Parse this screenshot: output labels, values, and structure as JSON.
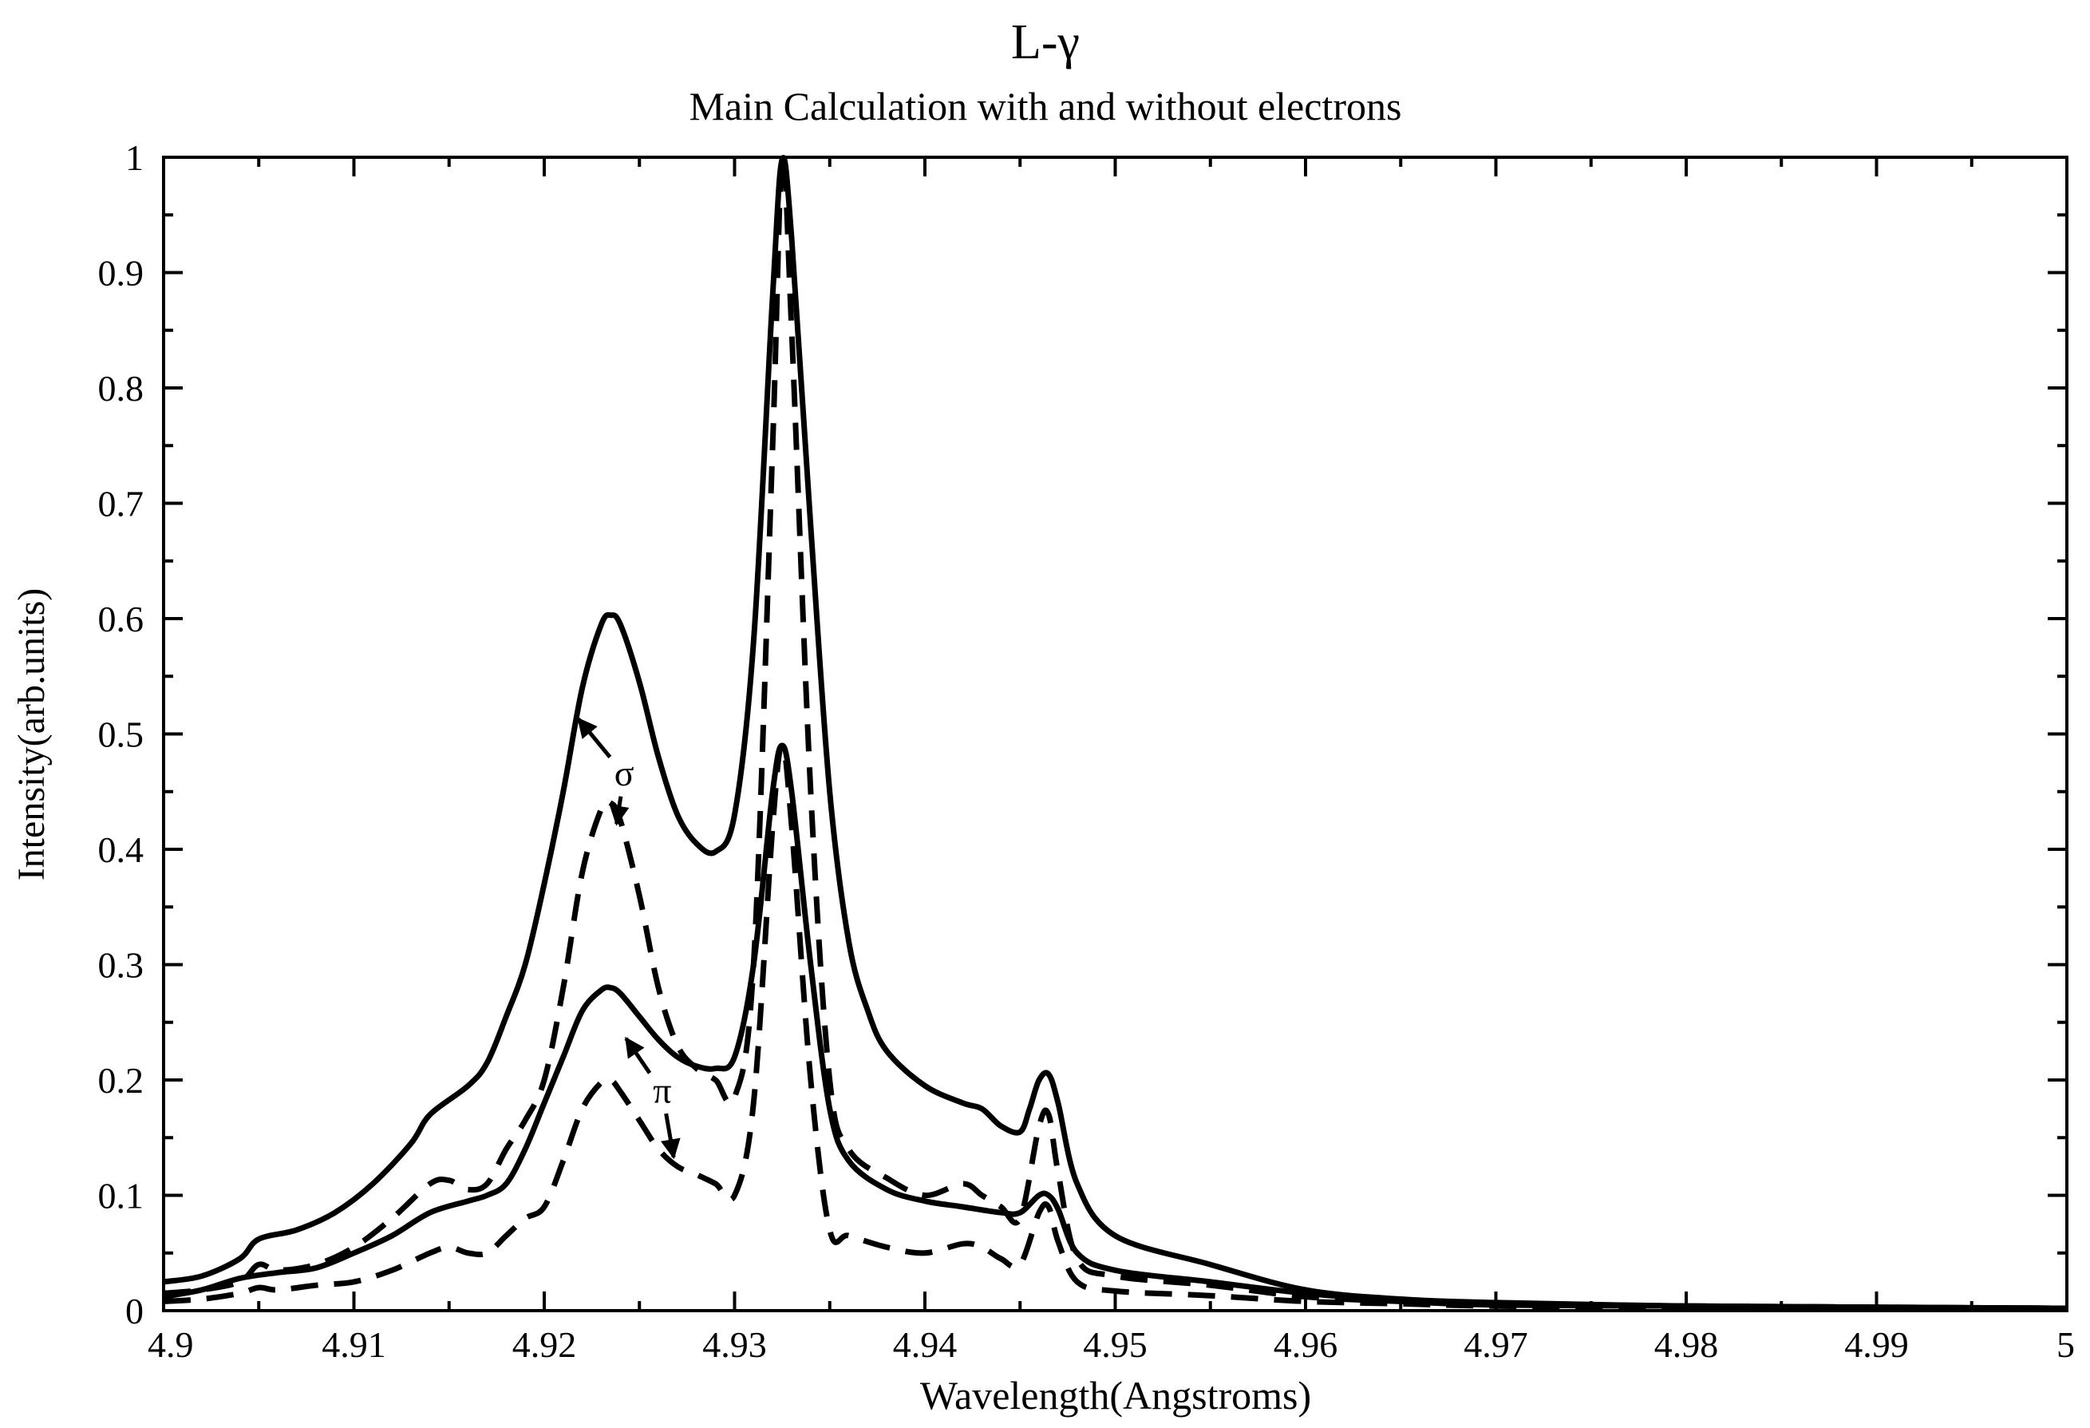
{
  "chart_data": {
    "type": "line",
    "title": "L-γ",
    "subtitle": "Main Calculation with  and without electrons",
    "xlabel": "Wavelength(Angstroms)",
    "ylabel": "Intensity(arb.units)",
    "xlim": [
      4.9,
      5.0
    ],
    "ylim": [
      0,
      1
    ],
    "x_ticks": [
      "4.9",
      "4.91",
      "4.92",
      "4.93",
      "4.94",
      "4.95",
      "4.96",
      "4.97",
      "4.98",
      "4.99",
      "5"
    ],
    "y_ticks": [
      "0",
      "0.1",
      "0.2",
      "0.3",
      "0.4",
      "0.5",
      "0.6",
      "0.7",
      "0.8",
      "0.9",
      "1"
    ],
    "grid": false,
    "legend": "none",
    "series": [
      {
        "style": "solid",
        "color": "#000000",
        "points": [
          [
            4.9,
            0.025
          ],
          [
            4.902,
            0.03
          ],
          [
            4.904,
            0.045
          ],
          [
            4.905,
            0.062
          ],
          [
            4.907,
            0.07
          ],
          [
            4.909,
            0.085
          ],
          [
            4.911,
            0.11
          ],
          [
            4.913,
            0.145
          ],
          [
            4.914,
            0.17
          ],
          [
            4.916,
            0.195
          ],
          [
            4.917,
            0.215
          ],
          [
            4.918,
            0.255
          ],
          [
            4.919,
            0.3
          ],
          [
            4.92,
            0.37
          ],
          [
            4.921,
            0.45
          ],
          [
            4.922,
            0.54
          ],
          [
            4.923,
            0.595
          ],
          [
            4.9235,
            0.603
          ],
          [
            4.924,
            0.595
          ],
          [
            4.925,
            0.545
          ],
          [
            4.926,
            0.48
          ],
          [
            4.927,
            0.43
          ],
          [
            4.928,
            0.405
          ],
          [
            4.929,
            0.398
          ],
          [
            4.93,
            0.43
          ],
          [
            4.931,
            0.58
          ],
          [
            4.932,
            0.88
          ],
          [
            4.9325,
            0.998
          ],
          [
            4.933,
            0.93
          ],
          [
            4.934,
            0.68
          ],
          [
            4.935,
            0.45
          ],
          [
            4.936,
            0.32
          ],
          [
            4.937,
            0.26
          ],
          [
            4.938,
            0.225
          ],
          [
            4.94,
            0.195
          ],
          [
            4.942,
            0.18
          ],
          [
            4.943,
            0.175
          ],
          [
            4.944,
            0.16
          ],
          [
            4.945,
            0.155
          ],
          [
            4.9455,
            0.175
          ],
          [
            4.946,
            0.2
          ],
          [
            4.9465,
            0.205
          ],
          [
            4.947,
            0.18
          ],
          [
            4.948,
            0.11
          ],
          [
            4.95,
            0.065
          ],
          [
            4.955,
            0.04
          ],
          [
            4.96,
            0.018
          ],
          [
            4.965,
            0.01
          ],
          [
            4.97,
            0.007
          ],
          [
            4.98,
            0.004
          ],
          [
            4.99,
            0.003
          ],
          [
            5.0,
            0.002
          ]
        ]
      },
      {
        "style": "dashed",
        "color": "#000000",
        "points": [
          [
            4.9,
            0.015
          ],
          [
            4.902,
            0.018
          ],
          [
            4.904,
            0.025
          ],
          [
            4.905,
            0.04
          ],
          [
            4.906,
            0.035
          ],
          [
            4.908,
            0.04
          ],
          [
            4.91,
            0.055
          ],
          [
            4.912,
            0.08
          ],
          [
            4.914,
            0.11
          ],
          [
            4.915,
            0.113
          ],
          [
            4.916,
            0.105
          ],
          [
            4.917,
            0.11
          ],
          [
            4.918,
            0.14
          ],
          [
            4.919,
            0.165
          ],
          [
            4.92,
            0.2
          ],
          [
            4.921,
            0.28
          ],
          [
            4.922,
            0.38
          ],
          [
            4.923,
            0.435
          ],
          [
            4.9235,
            0.44
          ],
          [
            4.924,
            0.425
          ],
          [
            4.925,
            0.36
          ],
          [
            4.926,
            0.28
          ],
          [
            4.927,
            0.23
          ],
          [
            4.928,
            0.21
          ],
          [
            4.929,
            0.2
          ],
          [
            4.93,
            0.185
          ],
          [
            4.931,
            0.3
          ],
          [
            4.932,
            0.75
          ],
          [
            4.9325,
            0.998
          ],
          [
            4.933,
            0.85
          ],
          [
            4.934,
            0.45
          ],
          [
            4.935,
            0.2
          ],
          [
            4.936,
            0.14
          ],
          [
            4.938,
            0.115
          ],
          [
            4.94,
            0.1
          ],
          [
            4.942,
            0.11
          ],
          [
            4.943,
            0.1
          ],
          [
            4.944,
            0.09
          ],
          [
            4.945,
            0.08
          ],
          [
            4.946,
            0.16
          ],
          [
            4.9465,
            0.17
          ],
          [
            4.947,
            0.12
          ],
          [
            4.948,
            0.045
          ],
          [
            4.95,
            0.03
          ],
          [
            4.955,
            0.022
          ],
          [
            4.96,
            0.012
          ],
          [
            4.965,
            0.008
          ],
          [
            4.97,
            0.005
          ],
          [
            4.98,
            0.004
          ],
          [
            4.99,
            0.003
          ],
          [
            5.0,
            0.002
          ]
        ]
      },
      {
        "style": "solid",
        "color": "#000000",
        "points": [
          [
            4.9,
            0.012
          ],
          [
            4.902,
            0.018
          ],
          [
            4.904,
            0.028
          ],
          [
            4.906,
            0.033
          ],
          [
            4.908,
            0.037
          ],
          [
            4.91,
            0.05
          ],
          [
            4.912,
            0.065
          ],
          [
            4.914,
            0.085
          ],
          [
            4.916,
            0.095
          ],
          [
            4.917,
            0.1
          ],
          [
            4.918,
            0.11
          ],
          [
            4.919,
            0.14
          ],
          [
            4.92,
            0.18
          ],
          [
            4.921,
            0.22
          ],
          [
            4.922,
            0.26
          ],
          [
            4.923,
            0.278
          ],
          [
            4.9235,
            0.28
          ],
          [
            4.924,
            0.275
          ],
          [
            4.925,
            0.255
          ],
          [
            4.926,
            0.235
          ],
          [
            4.927,
            0.22
          ],
          [
            4.928,
            0.212
          ],
          [
            4.929,
            0.21
          ],
          [
            4.93,
            0.22
          ],
          [
            4.931,
            0.3
          ],
          [
            4.932,
            0.45
          ],
          [
            4.9325,
            0.49
          ],
          [
            4.933,
            0.45
          ],
          [
            4.934,
            0.3
          ],
          [
            4.935,
            0.175
          ],
          [
            4.936,
            0.13
          ],
          [
            4.938,
            0.105
          ],
          [
            4.94,
            0.095
          ],
          [
            4.942,
            0.09
          ],
          [
            4.944,
            0.085
          ],
          [
            4.945,
            0.085
          ],
          [
            4.946,
            0.1
          ],
          [
            4.9465,
            0.1
          ],
          [
            4.947,
            0.088
          ],
          [
            4.948,
            0.05
          ],
          [
            4.95,
            0.035
          ],
          [
            4.955,
            0.025
          ],
          [
            4.96,
            0.015
          ],
          [
            4.965,
            0.009
          ],
          [
            4.97,
            0.006
          ],
          [
            4.98,
            0.004
          ],
          [
            4.99,
            0.003
          ],
          [
            5.0,
            0.002
          ]
        ]
      },
      {
        "style": "dashed",
        "color": "#000000",
        "points": [
          [
            4.9,
            0.008
          ],
          [
            4.902,
            0.01
          ],
          [
            4.904,
            0.015
          ],
          [
            4.905,
            0.02
          ],
          [
            4.906,
            0.018
          ],
          [
            4.908,
            0.022
          ],
          [
            4.91,
            0.025
          ],
          [
            4.912,
            0.035
          ],
          [
            4.914,
            0.05
          ],
          [
            4.915,
            0.055
          ],
          [
            4.916,
            0.05
          ],
          [
            4.917,
            0.05
          ],
          [
            4.918,
            0.065
          ],
          [
            4.919,
            0.08
          ],
          [
            4.92,
            0.09
          ],
          [
            4.921,
            0.13
          ],
          [
            4.922,
            0.175
          ],
          [
            4.923,
            0.198
          ],
          [
            4.9235,
            0.2
          ],
          [
            4.924,
            0.19
          ],
          [
            4.925,
            0.165
          ],
          [
            4.926,
            0.14
          ],
          [
            4.927,
            0.125
          ],
          [
            4.928,
            0.118
          ],
          [
            4.929,
            0.11
          ],
          [
            4.93,
            0.1
          ],
          [
            4.931,
            0.18
          ],
          [
            4.932,
            0.42
          ],
          [
            4.9325,
            0.49
          ],
          [
            4.933,
            0.42
          ],
          [
            4.934,
            0.2
          ],
          [
            4.935,
            0.07
          ],
          [
            4.936,
            0.065
          ],
          [
            4.938,
            0.055
          ],
          [
            4.94,
            0.05
          ],
          [
            4.942,
            0.058
          ],
          [
            4.943,
            0.055
          ],
          [
            4.944,
            0.045
          ],
          [
            4.945,
            0.04
          ],
          [
            4.946,
            0.085
          ],
          [
            4.9465,
            0.09
          ],
          [
            4.947,
            0.06
          ],
          [
            4.948,
            0.025
          ],
          [
            4.95,
            0.017
          ],
          [
            4.955,
            0.013
          ],
          [
            4.96,
            0.008
          ],
          [
            4.965,
            0.006
          ],
          [
            4.97,
            0.004
          ],
          [
            4.98,
            0.003
          ],
          [
            4.99,
            0.002
          ],
          [
            5.0,
            0.002
          ]
        ]
      }
    ],
    "annotations": [
      {
        "text": "σ",
        "x": 4.9242,
        "y": 0.465,
        "arrows_to": [
          [
            4.9218,
            0.513
          ],
          [
            4.9238,
            0.422
          ]
        ]
      },
      {
        "text": "π",
        "x": 4.9262,
        "y": 0.19,
        "arrows_to": [
          [
            4.9243,
            0.236
          ],
          [
            4.9268,
            0.133
          ]
        ]
      }
    ]
  }
}
